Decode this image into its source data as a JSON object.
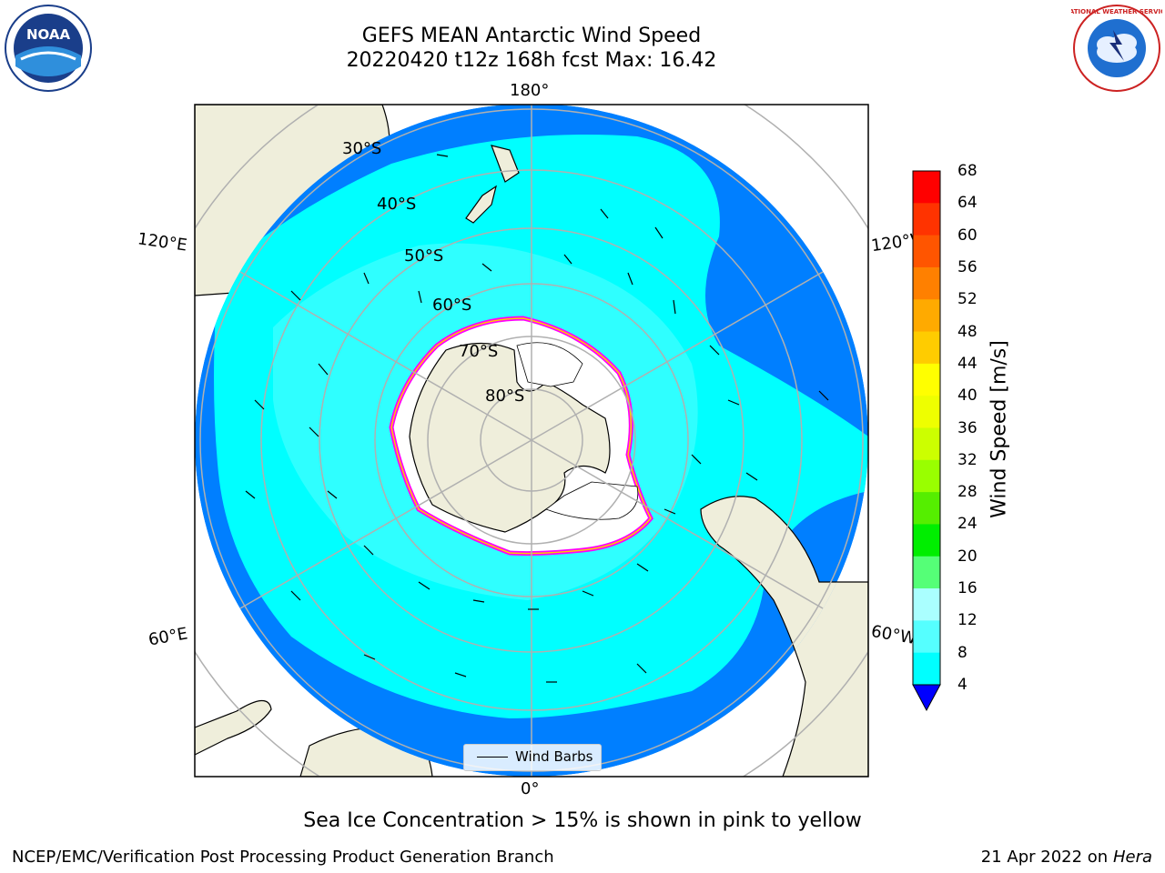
{
  "title": {
    "line1": "GEFS MEAN Antarctic Wind Speed",
    "line2": "20220420 t12z 168h fcst   Max: 16.42"
  },
  "logos": {
    "left": {
      "text": "NOAA",
      "icon": "noaa-logo"
    },
    "right": {
      "text": "NATIONAL WEATHER SERVICE",
      "icon": "nws-logo"
    }
  },
  "map": {
    "projection": "south-polar-stereographic",
    "lon_labels": {
      "top": "180°",
      "bottom": "0°",
      "left_upper": "120°E",
      "left_lower": "60°E",
      "right_upper": "120°W",
      "right_lower": "60°W"
    },
    "lat_labels": [
      "30°S",
      "40°S",
      "50°S",
      "60°S",
      "70°S",
      "80°S"
    ],
    "legend": {
      "label": "Wind Barbs"
    },
    "colors": {
      "land": "#efeedb",
      "ice_sheet": "#ffffff",
      "wind_4_8": "#007fff",
      "wind_8_12": "#00ffff",
      "wind_12_16": "#55ffff",
      "sea_ice_edge": "#ff00ff",
      "grid": "#b0b0b0"
    }
  },
  "colorbar": {
    "title": "Wind Speed [m/s]",
    "ticks": [
      "68",
      "64",
      "60",
      "56",
      "52",
      "48",
      "44",
      "40",
      "36",
      "32",
      "28",
      "24",
      "20",
      "16",
      "12",
      "8",
      "4"
    ],
    "colors": [
      "#ff0000",
      "#ff3300",
      "#ff5500",
      "#ff8000",
      "#ffaa00",
      "#ffcc00",
      "#ffff00",
      "#eeff00",
      "#ccff00",
      "#99ff00",
      "#55ee00",
      "#00ee00",
      "#55ff77",
      "#aaffff",
      "#55ffff",
      "#00ffff",
      "#007fff"
    ],
    "extend_color": "#0000ff"
  },
  "caption": "Sea Ice Concentration > 15% is shown in pink to yellow",
  "footer": {
    "left": "NCEP/EMC/Verification Post Processing Product Generation Branch",
    "date": "21 Apr 2022 on",
    "host": "Hera"
  }
}
